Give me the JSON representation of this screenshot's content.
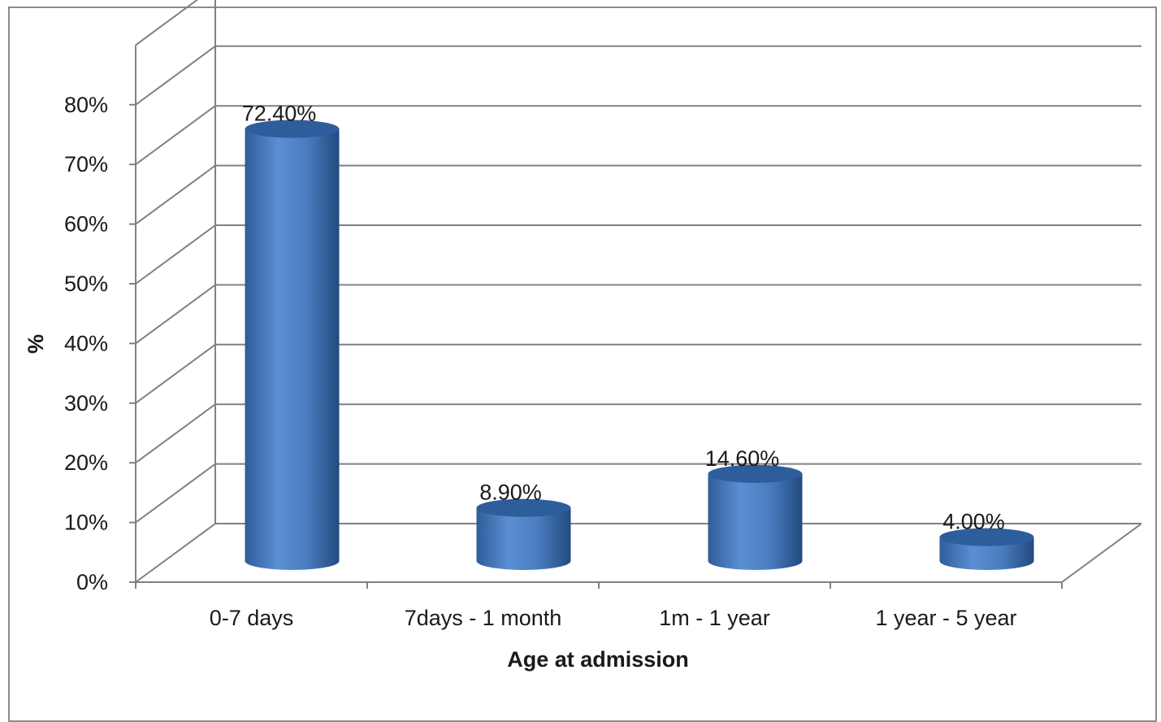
{
  "chart_data": {
    "type": "bar",
    "style": "3d-cylinder",
    "categories": [
      "0-7 days",
      "7days - 1 month",
      "1m - 1 year",
      "1 year - 5 year"
    ],
    "values": [
      72.4,
      8.9,
      14.6,
      4.0
    ],
    "data_labels": [
      "72.40%",
      "8.90%",
      "14.60%",
      "4.00%"
    ],
    "xlabel": "Age at admission",
    "ylabel": "%",
    "ylim": [
      0,
      80
    ],
    "y_ticks": [
      0,
      10,
      20,
      30,
      40,
      50,
      60,
      70,
      80
    ],
    "y_tick_labels": [
      "0%",
      "10%",
      "20%",
      "30%",
      "40%",
      "50%",
      "60%",
      "70%",
      "80%"
    ],
    "grid": true,
    "legend": "none",
    "colors": {
      "bar": "#4a7dbf",
      "bar_dark": "#2c5790",
      "bar_light": "#7aa3dc",
      "grid": "#808080",
      "frame": "#8c8c8c"
    }
  }
}
